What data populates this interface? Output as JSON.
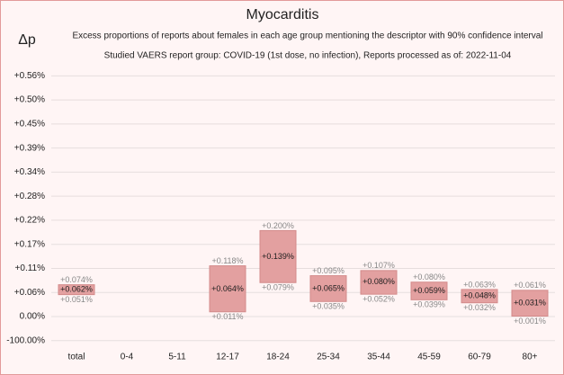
{
  "chart_data": {
    "type": "bar",
    "title": "Myocarditis",
    "subtitle": [
      "Excess proportions of reports about females in each age group mentioning the descriptor with 90% confidence interval",
      "Studied VAERS report group: COVID-19 (1st dose, no infection), Reports processed as of: 2022-11-04"
    ],
    "y_label": "Δp",
    "categories": [
      "total",
      "0-4",
      "5-11",
      "12-17",
      "18-24",
      "25-34",
      "35-44",
      "45-59",
      "60-79",
      "80+"
    ],
    "values": [
      0.062,
      null,
      null,
      0.064,
      0.139,
      0.065,
      0.08,
      0.059,
      0.048,
      0.031
    ],
    "value_labels": [
      "+0.062%",
      null,
      null,
      "+0.064%",
      "+0.139%",
      "+0.065%",
      "+0.080%",
      "+0.059%",
      "+0.048%",
      "+0.031%"
    ],
    "low": [
      0.051,
      null,
      null,
      0.011,
      0.079,
      0.035,
      0.052,
      0.039,
      0.032,
      0.001
    ],
    "low_labels": [
      "+0.051%",
      null,
      null,
      "+0.011%",
      "+0.079%",
      "+0.035%",
      "+0.052%",
      "+0.039%",
      "+0.032%",
      "+0.001%"
    ],
    "high": [
      0.074,
      null,
      null,
      0.118,
      0.2,
      0.095,
      0.107,
      0.08,
      0.063,
      0.061
    ],
    "high_labels": [
      "+0.074%",
      null,
      null,
      "+0.118%",
      "+0.200%",
      "+0.095%",
      "+0.107%",
      "+0.080%",
      "+0.063%",
      "+0.061%"
    ],
    "color": "#e3a0a0",
    "ylim": [
      0,
      0.59
    ],
    "y_axis_break": true,
    "yticks": [
      {
        "value": -100,
        "label": "-100.00%"
      },
      {
        "value": 0,
        "label": "0.00%"
      },
      {
        "value": 0.056,
        "label": "+0.06%"
      },
      {
        "value": 0.112,
        "label": "+0.11%"
      },
      {
        "value": 0.168,
        "label": "+0.17%"
      },
      {
        "value": 0.224,
        "label": "+0.22%"
      },
      {
        "value": 0.28,
        "label": "+0.28%"
      },
      {
        "value": 0.336,
        "label": "+0.34%"
      },
      {
        "value": 0.392,
        "label": "+0.39%"
      },
      {
        "value": 0.448,
        "label": "+0.45%"
      },
      {
        "value": 0.504,
        "label": "+0.50%"
      },
      {
        "value": 0.56,
        "label": "+0.56%"
      }
    ],
    "grid": true
  }
}
